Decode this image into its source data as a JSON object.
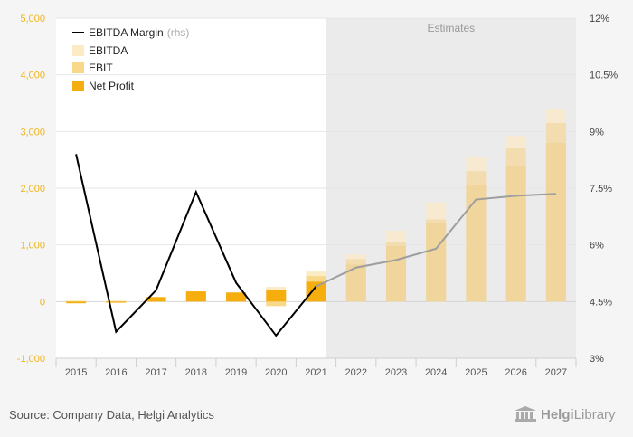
{
  "chart_data": {
    "type": "bar",
    "categories": [
      "2015",
      "2016",
      "2017",
      "2018",
      "2019",
      "2020",
      "2021",
      "2022",
      "2023",
      "2024",
      "2025",
      "2026",
      "2027"
    ],
    "series": [
      {
        "name": "EBITDA",
        "values": [
          20,
          20,
          80,
          180,
          160,
          260,
          530,
          830,
          1250,
          1750,
          2550,
          2920,
          3400
        ]
      },
      {
        "name": "EBIT",
        "values": [
          -10,
          -10,
          60,
          150,
          120,
          -80,
          450,
          750,
          1050,
          1450,
          2300,
          2700,
          3150
        ]
      },
      {
        "name": "Net Profit",
        "values": [
          -30,
          -20,
          80,
          180,
          160,
          200,
          350,
          650,
          980,
          1380,
          2050,
          2400,
          2800
        ]
      }
    ],
    "line_series": {
      "name": "EBITDA Margin",
      "axis": "rhs",
      "values": [
        8.4,
        3.7,
        4.8,
        7.4,
        5.0,
        3.6,
        4.9,
        5.4,
        5.6,
        5.9,
        7.2,
        7.3,
        7.35
      ]
    },
    "estimates_from": "2022",
    "estimates_label": "Estimates",
    "ylim": [
      -1000,
      5000
    ],
    "y_ticks": [
      -1000,
      0,
      1000,
      2000,
      3000,
      4000,
      5000
    ],
    "y_tick_labels": [
      "-1,000",
      "0",
      "1,000",
      "2,000",
      "3,000",
      "4,000",
      "5,000"
    ],
    "y2lim": [
      3,
      12
    ],
    "y2_ticks": [
      3,
      4.5,
      6,
      7.5,
      9,
      10.5,
      12
    ],
    "y2_tick_labels": [
      "3%",
      "4.5%",
      "6%",
      "7.5%",
      "9%",
      "10.5%",
      "12%"
    ],
    "legend": {
      "position": "top-left",
      "margin_label": "EBITDA Margin",
      "margin_suffix": "(rhs)",
      "ebitda_label": "EBITDA",
      "ebit_label": "EBIT",
      "net_profit_label": "Net Profit"
    },
    "colors": {
      "ebitda": "#fbecc6",
      "ebit": "#f8d98a",
      "net_profit": "#f5ae0d",
      "margin_line": "#000000",
      "margin_line_estimate": "#9e9e9e",
      "left_axis_text": "#f0b414",
      "estimates_bg": "#ebebeb"
    }
  },
  "footer": {
    "source": "Source: Company Data, Helgi Analytics",
    "logo_brand": "Helgi",
    "logo_library": "Library"
  }
}
